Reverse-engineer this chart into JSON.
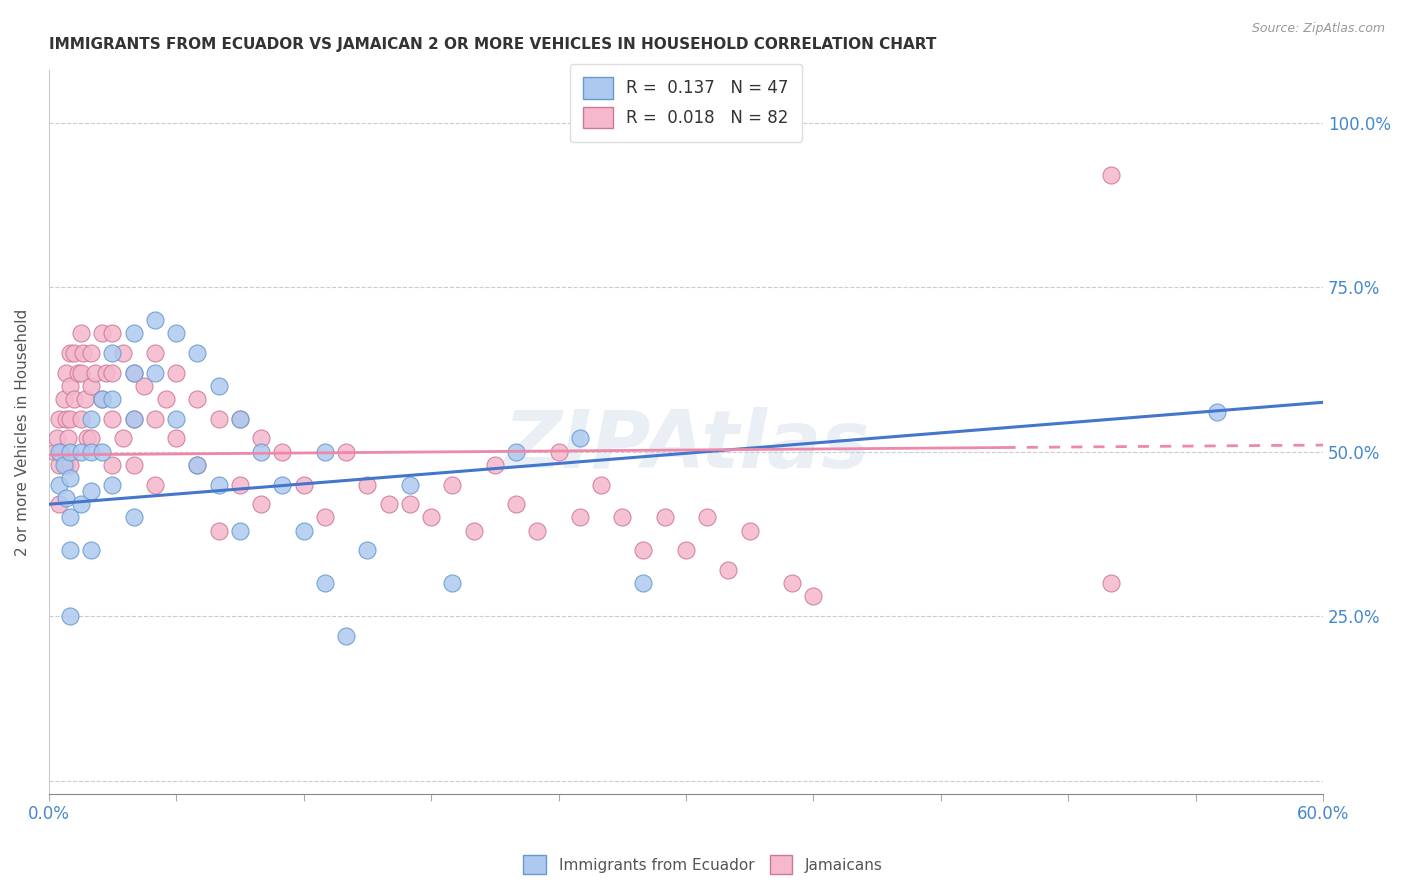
{
  "title": "IMMIGRANTS FROM ECUADOR VS JAMAICAN 2 OR MORE VEHICLES IN HOUSEHOLD CORRELATION CHART",
  "source": "Source: ZipAtlas.com",
  "ylabel": "2 or more Vehicles in Household",
  "ytick_labels": [
    "",
    "25.0%",
    "50.0%",
    "75.0%",
    "100.0%"
  ],
  "ytick_values": [
    0.0,
    0.25,
    0.5,
    0.75,
    1.0
  ],
  "xlim": [
    0.0,
    0.6
  ],
  "ylim": [
    -0.02,
    1.08
  ],
  "ecuador_R": 0.137,
  "ecuador_N": 47,
  "jamaican_R": 0.018,
  "jamaican_N": 82,
  "ecuador_color": "#aec9f0",
  "jamaican_color": "#f5b8cc",
  "ecuador_edge_color": "#6699cc",
  "jamaican_edge_color": "#cc7799",
  "ecuador_line_color": "#4477cc",
  "jamaican_line_color": "#ee88aa",
  "watermark": "ZIPAtlas",
  "legend_labels": [
    "Immigrants from Ecuador",
    "Jamaicans"
  ],
  "ecuador_x": [
    0.005,
    0.005,
    0.007,
    0.008,
    0.01,
    0.01,
    0.01,
    0.01,
    0.01,
    0.015,
    0.015,
    0.02,
    0.02,
    0.02,
    0.02,
    0.025,
    0.025,
    0.03,
    0.03,
    0.03,
    0.04,
    0.04,
    0.04,
    0.04,
    0.05,
    0.05,
    0.06,
    0.06,
    0.07,
    0.07,
    0.08,
    0.08,
    0.09,
    0.09,
    0.1,
    0.11,
    0.12,
    0.13,
    0.13,
    0.14,
    0.15,
    0.17,
    0.19,
    0.22,
    0.25,
    0.28,
    0.55
  ],
  "ecuador_y": [
    0.5,
    0.45,
    0.48,
    0.43,
    0.5,
    0.46,
    0.4,
    0.35,
    0.25,
    0.5,
    0.42,
    0.55,
    0.5,
    0.44,
    0.35,
    0.58,
    0.5,
    0.65,
    0.58,
    0.45,
    0.68,
    0.62,
    0.55,
    0.4,
    0.7,
    0.62,
    0.68,
    0.55,
    0.65,
    0.48,
    0.6,
    0.45,
    0.55,
    0.38,
    0.5,
    0.45,
    0.38,
    0.5,
    0.3,
    0.22,
    0.35,
    0.45,
    0.3,
    0.5,
    0.52,
    0.3,
    0.56
  ],
  "jamaican_x": [
    0.003,
    0.004,
    0.005,
    0.005,
    0.005,
    0.006,
    0.007,
    0.008,
    0.008,
    0.008,
    0.009,
    0.01,
    0.01,
    0.01,
    0.01,
    0.012,
    0.012,
    0.014,
    0.015,
    0.015,
    0.015,
    0.016,
    0.017,
    0.018,
    0.02,
    0.02,
    0.02,
    0.022,
    0.025,
    0.025,
    0.027,
    0.03,
    0.03,
    0.03,
    0.03,
    0.035,
    0.035,
    0.04,
    0.04,
    0.04,
    0.045,
    0.05,
    0.05,
    0.05,
    0.055,
    0.06,
    0.06,
    0.07,
    0.07,
    0.08,
    0.08,
    0.09,
    0.09,
    0.1,
    0.1,
    0.11,
    0.12,
    0.13,
    0.14,
    0.15,
    0.16,
    0.17,
    0.18,
    0.19,
    0.2,
    0.21,
    0.22,
    0.23,
    0.24,
    0.25,
    0.26,
    0.27,
    0.28,
    0.29,
    0.3,
    0.31,
    0.32,
    0.33,
    0.35,
    0.36,
    0.5,
    0.5
  ],
  "jamaican_y": [
    0.5,
    0.52,
    0.55,
    0.48,
    0.42,
    0.5,
    0.58,
    0.62,
    0.55,
    0.48,
    0.52,
    0.65,
    0.6,
    0.55,
    0.48,
    0.65,
    0.58,
    0.62,
    0.68,
    0.62,
    0.55,
    0.65,
    0.58,
    0.52,
    0.65,
    0.6,
    0.52,
    0.62,
    0.68,
    0.58,
    0.62,
    0.68,
    0.62,
    0.55,
    0.48,
    0.65,
    0.52,
    0.62,
    0.55,
    0.48,
    0.6,
    0.65,
    0.55,
    0.45,
    0.58,
    0.62,
    0.52,
    0.58,
    0.48,
    0.55,
    0.38,
    0.55,
    0.45,
    0.52,
    0.42,
    0.5,
    0.45,
    0.4,
    0.5,
    0.45,
    0.42,
    0.42,
    0.4,
    0.45,
    0.38,
    0.48,
    0.42,
    0.38,
    0.5,
    0.4,
    0.45,
    0.4,
    0.35,
    0.4,
    0.35,
    0.4,
    0.32,
    0.38,
    0.3,
    0.28,
    0.3,
    0.92
  ],
  "xtick_positions": [
    0.0,
    0.06,
    0.12,
    0.18,
    0.24,
    0.3,
    0.36,
    0.42,
    0.48,
    0.54,
    0.6
  ],
  "ecuador_line_start_y": 0.42,
  "ecuador_line_end_y": 0.575,
  "jamaican_line_start_y": 0.495,
  "jamaican_line_end_y": 0.51
}
